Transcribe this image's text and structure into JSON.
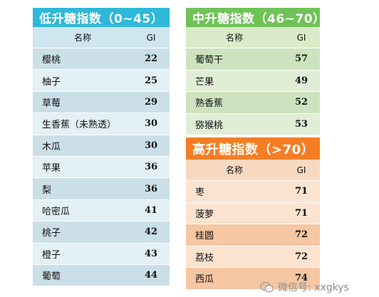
{
  "low": {
    "title": "低升糖指数（0~45）",
    "col_name": "名称",
    "col_gi": "GI",
    "rows": [
      {
        "name": "樱桃",
        "gi": "22"
      },
      {
        "name": "柚子",
        "gi": "25"
      },
      {
        "name": "草莓",
        "gi": "29"
      },
      {
        "name": "生香蕉（未熟透）",
        "gi": "30"
      },
      {
        "name": "木瓜",
        "gi": "30"
      },
      {
        "name": "苹果",
        "gi": "36"
      },
      {
        "name": "梨",
        "gi": "36"
      },
      {
        "name": "哈密瓜",
        "gi": "41"
      },
      {
        "name": "桃子",
        "gi": "42"
      },
      {
        "name": "橙子",
        "gi": "43"
      },
      {
        "name": "葡萄",
        "gi": "44"
      }
    ]
  },
  "mid": {
    "title": "中升糖指数（46~70）",
    "col_name": "名称",
    "col_gi": "GI",
    "rows": [
      {
        "name": "葡萄干",
        "gi": "57"
      },
      {
        "name": "芒果",
        "gi": "49"
      },
      {
        "name": "熟香蕉",
        "gi": "52"
      },
      {
        "name": "猕猴桃",
        "gi": "53"
      }
    ]
  },
  "high": {
    "title": "高升糖指数（>70）",
    "col_name": "名称",
    "col_gi": "GI",
    "rows": [
      {
        "name": "枣",
        "gi": "71"
      },
      {
        "name": "菠萝",
        "gi": "71"
      },
      {
        "name": "桂圆",
        "gi": "72"
      },
      {
        "name": "荔枝",
        "gi": "72"
      },
      {
        "name": "西瓜",
        "gi": "74"
      }
    ]
  },
  "watermark": {
    "icon": "wechat-icon",
    "text": "微信号: xxgkys"
  },
  "colors": {
    "low_header": "#2eb8d9",
    "mid_header": "#6fc256",
    "high_header": "#f47e25"
  }
}
